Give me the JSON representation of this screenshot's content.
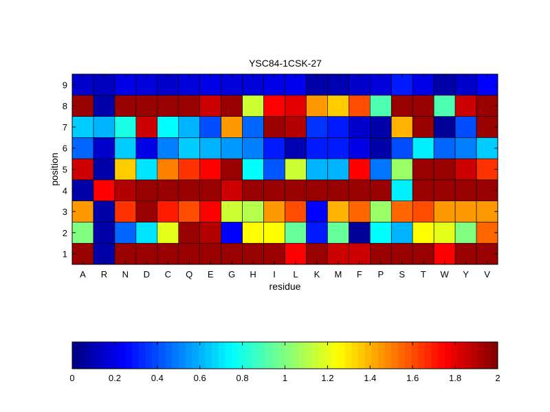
{
  "chart_data": {
    "type": "heatmap",
    "title": "YSC84-1CSK-27",
    "xlabel": "residue",
    "ylabel": "position",
    "x_categories": [
      "A",
      "R",
      "N",
      "D",
      "C",
      "Q",
      "E",
      "G",
      "H",
      "I",
      "L",
      "K",
      "M",
      "F",
      "P",
      "S",
      "T",
      "W",
      "Y",
      "V"
    ],
    "y_categories": [
      "1",
      "2",
      "3",
      "4",
      "5",
      "6",
      "7",
      "8",
      "9"
    ],
    "values": [
      [
        1.95,
        0.08,
        1.95,
        1.95,
        1.95,
        1.95,
        1.95,
        1.95,
        1.95,
        1.95,
        1.75,
        1.95,
        1.85,
        1.85,
        1.95,
        1.95,
        1.95,
        1.75,
        1.95,
        1.95
      ],
      [
        1.0,
        0.08,
        0.45,
        0.7,
        1.2,
        1.95,
        1.9,
        0.25,
        1.25,
        1.25,
        0.95,
        0.3,
        0.95,
        0.05,
        0.75,
        0.6,
        1.25,
        1.2,
        1.0,
        1.55
      ],
      [
        1.45,
        0.08,
        1.65,
        1.95,
        1.7,
        1.6,
        1.75,
        1.15,
        1.1,
        1.45,
        1.6,
        0.25,
        1.4,
        1.55,
        1.05,
        1.55,
        1.6,
        1.45,
        1.45,
        1.45
      ],
      [
        0.08,
        1.75,
        1.9,
        1.95,
        1.95,
        1.95,
        1.95,
        1.85,
        1.95,
        1.95,
        1.95,
        1.95,
        1.95,
        1.95,
        1.95,
        0.72,
        1.95,
        1.95,
        1.95,
        1.95
      ],
      [
        1.85,
        0.08,
        1.35,
        0.7,
        1.5,
        1.65,
        1.75,
        1.95,
        0.75,
        0.42,
        1.15,
        0.6,
        0.6,
        1.75,
        0.48,
        1.05,
        1.95,
        1.95,
        1.85,
        1.65
      ],
      [
        0.45,
        0.15,
        0.65,
        0.2,
        0.5,
        0.65,
        0.6,
        0.55,
        0.5,
        0.3,
        0.1,
        0.3,
        0.3,
        0.2,
        0.08,
        0.4,
        0.72,
        0.45,
        0.5,
        0.65
      ],
      [
        0.65,
        0.6,
        0.8,
        1.85,
        0.75,
        0.6,
        0.4,
        1.45,
        0.45,
        1.95,
        1.9,
        0.35,
        0.3,
        0.15,
        0.08,
        1.4,
        1.95,
        0.05,
        0.4,
        1.95
      ],
      [
        1.95,
        0.08,
        1.95,
        1.95,
        1.95,
        1.95,
        1.85,
        1.95,
        1.15,
        1.75,
        1.8,
        1.45,
        1.35,
        1.6,
        0.9,
        1.95,
        1.95,
        0.9,
        1.85,
        1.95
      ],
      [
        0.15,
        0.12,
        0.2,
        0.18,
        0.15,
        0.18,
        0.2,
        0.18,
        0.18,
        0.2,
        0.22,
        0.08,
        0.1,
        0.15,
        0.18,
        0.3,
        0.2,
        0.08,
        0.15,
        0.25
      ]
    ],
    "colorbar": {
      "min": 0,
      "max": 2,
      "ticks": [
        "0",
        "0.2",
        "0.4",
        "0.6",
        "0.8",
        "1",
        "1.2",
        "1.4",
        "1.6",
        "1.8",
        "2"
      ],
      "colormap": "jet",
      "levels": 64
    }
  }
}
